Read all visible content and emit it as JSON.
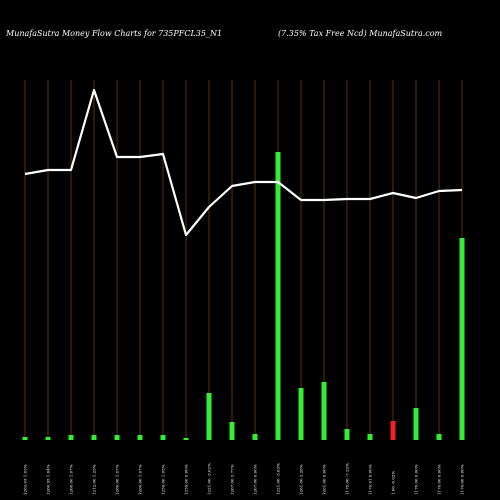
{
  "chart_data": {
    "type": "bar",
    "title": "MunafaSutra  Money Flow  Charts for 735PFCL35_N1",
    "subtitle": "(7.35% Tax Free   Ncd) MunafaSutra.com",
    "categories": [
      "1262.05 1.03%",
      "1260.95 1.04%",
      "1260.00 1.07%",
      "1212.00 1.23%",
      "1260.00 1.07%",
      "1260.00 1.07%",
      "1259.00 1.05%",
      "1259.00 0.00%",
      "1221.00 -3.02%",
      "1267.00 3.77%",
      "1267.00 0.00%",
      "1221.00 -3.63%",
      "1261.00 3.28%",
      "1261.00 0.00%",
      "1170.00 -7.22%",
      "1170.01 0.00%",
      "1.00 -0.02%",
      "1170.00 0.00%",
      "1170.00 0.00%",
      "1170.00 0.00%"
    ],
    "series": [
      {
        "name": "Money Flow",
        "colors": [
          "#33ee33",
          "#33ee33",
          "#33ee33",
          "#33ee33",
          "#33ee33",
          "#33ee33",
          "#33ee33",
          "#33ee33",
          "#33ee33",
          "#33ee33",
          "#33ee33",
          "#33ee33",
          "#33ee33",
          "#33ee33",
          "#33ee33",
          "#33ee33",
          "#ee2222",
          "#33ee33",
          "#33ee33",
          "#33ee33"
        ],
        "values": [
          3,
          3,
          5,
          5,
          5,
          5,
          5,
          2,
          47,
          18,
          6,
          288,
          52,
          58,
          11,
          6,
          19,
          32,
          6,
          202
        ]
      },
      {
        "name": "Price",
        "color": "#ffffff",
        "type": "line",
        "values": [
          266,
          270,
          270,
          350,
          283,
          283,
          286,
          205,
          233,
          254,
          258,
          258,
          240,
          240,
          241,
          241,
          247,
          242,
          249,
          250
        ]
      }
    ],
    "ylim": [
      0,
      400
    ],
    "grid": true,
    "grid_color": "#5a3208"
  }
}
